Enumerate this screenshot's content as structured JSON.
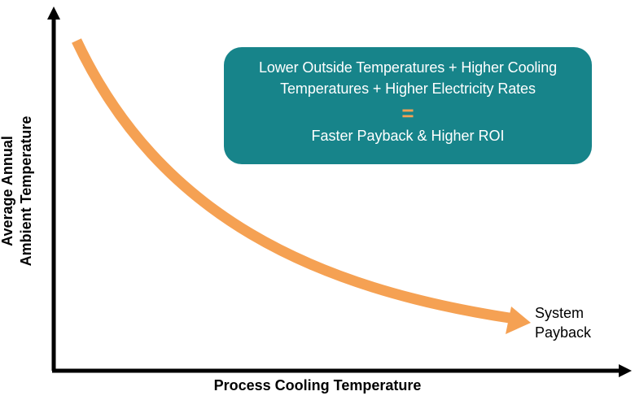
{
  "axes": {
    "y_label_line1": "Average Annual",
    "y_label_line2": "Ambient Temperature",
    "x_label": "Process Cooling Temperature"
  },
  "callout": {
    "line1": "Lower Outside Temperatures + Higher Cooling",
    "line2": "Temperatures + Higher Electricity Rates",
    "equals": "=",
    "result": "Faster Payback & Higher ROI"
  },
  "curve_end_label": {
    "line1": "System",
    "line2": "Payback"
  },
  "colors": {
    "callout_background": "#17848a",
    "equals_sign": "#f5a153",
    "curve_arrow": "#f5a153",
    "axes": "#000000"
  }
}
